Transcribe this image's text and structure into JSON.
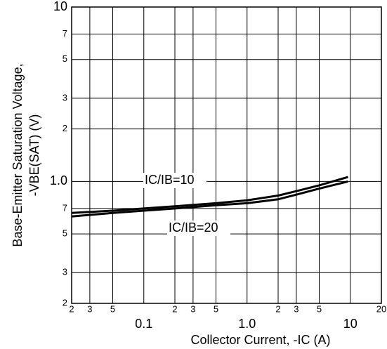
{
  "chart_data": {
    "type": "line",
    "xlabel": "Collector Current, -IC (A)",
    "ylabel": [
      "Base-Emitter Saturation Voltage,",
      "-VBE(SAT) (V)"
    ],
    "xscale": "log",
    "yscale": "log",
    "grid": true,
    "xlim": [
      0.02,
      20
    ],
    "ylim": [
      0.2,
      10
    ],
    "xticks": [
      {
        "value": 0.02,
        "label": "2"
      },
      {
        "value": 0.03,
        "label": "3"
      },
      {
        "value": 0.05,
        "label": "5"
      },
      0.1,
      {
        "value": 0.2,
        "label": "2"
      },
      {
        "value": 0.3,
        "label": "3"
      },
      {
        "value": 0.5,
        "label": "5"
      },
      {
        "value": 1,
        "label": "1.0"
      },
      2,
      3,
      5,
      10,
      20
    ],
    "yticks": [
      {
        "value": 0.2,
        "label": "2"
      },
      {
        "value": 0.3,
        "label": "3"
      },
      {
        "value": 0.5,
        "label": "5"
      },
      {
        "value": 0.7,
        "label": "7"
      },
      {
        "value": 1,
        "label": "1.0"
      },
      2,
      3,
      5,
      7,
      10
    ],
    "x": [
      0.02,
      0.05,
      0.1,
      0.2,
      0.5,
      1,
      2,
      3,
      5,
      9.5
    ],
    "series": [
      {
        "name": "IC/IB=10",
        "color": "#000000",
        "values": [
          0.66,
          0.68,
          0.7,
          0.72,
          0.75,
          0.78,
          0.83,
          0.88,
          0.95,
          1.06
        ]
      },
      {
        "name": "IC/IB=20",
        "color": "#000000",
        "values": [
          0.63,
          0.66,
          0.68,
          0.7,
          0.73,
          0.75,
          0.79,
          0.84,
          0.91,
          1.0
        ]
      }
    ]
  }
}
